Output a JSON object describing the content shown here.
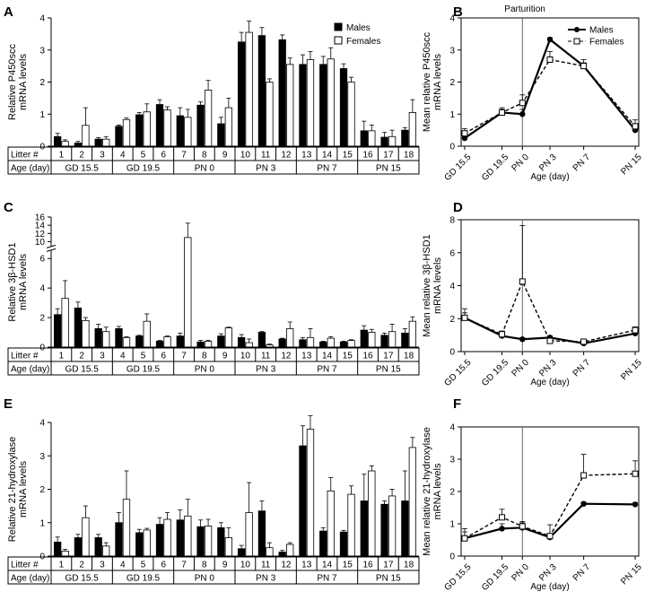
{
  "legend": {
    "males": "Males",
    "females": "Females"
  },
  "table": {
    "litter_header": "Litter #",
    "age_header": "Age (day)",
    "litters": [
      "1",
      "2",
      "3",
      "4",
      "5",
      "6",
      "7",
      "8",
      "9",
      "10",
      "11",
      "12",
      "13",
      "14",
      "15",
      "16",
      "17",
      "18"
    ],
    "age_groups": [
      "GD 15.5",
      "GD 19.5",
      "PN 0",
      "PN 3",
      "PN 7",
      "PN 15"
    ]
  },
  "chart_data": [
    {
      "panel": "A",
      "type": "bar",
      "ylabel": [
        "Relative P450scc",
        "mRNA levels"
      ],
      "yticks": [
        "0",
        "1",
        "2",
        "3",
        "4"
      ],
      "ylim": [
        0,
        4
      ],
      "categories": [
        "1",
        "2",
        "3",
        "4",
        "5",
        "6",
        "7",
        "8",
        "9",
        "10",
        "11",
        "12",
        "13",
        "14",
        "15",
        "16",
        "17",
        "18"
      ],
      "series": [
        {
          "name": "Males",
          "values": [
            0.3,
            0.1,
            0.22,
            0.62,
            0.98,
            1.3,
            0.95,
            1.28,
            0.7,
            3.25,
            3.45,
            3.32,
            2.55,
            2.55,
            2.42,
            0.48,
            0.28,
            0.5
          ],
          "errors": [
            0.1,
            0.05,
            0.05,
            0.04,
            0.07,
            0.15,
            0.25,
            0.1,
            0.2,
            0.3,
            0.25,
            0.15,
            0.3,
            0.25,
            0.15,
            0.3,
            0.15,
            0.08
          ]
        },
        {
          "name": "Females",
          "values": [
            0.15,
            0.65,
            0.22,
            0.83,
            1.07,
            1.13,
            0.9,
            1.75,
            1.2,
            3.55,
            2.0,
            2.55,
            2.7,
            2.72,
            2.0,
            0.48,
            0.3,
            1.05
          ],
          "errors": [
            0.05,
            0.55,
            0.08,
            0.05,
            0.25,
            0.1,
            0.25,
            0.3,
            0.3,
            0.35,
            0.1,
            0.2,
            0.25,
            0.35,
            0.15,
            0.18,
            0.2,
            0.4
          ]
        }
      ]
    },
    {
      "panel": "B",
      "type": "line",
      "ylabel": [
        "Mean relative P450scc",
        "mRNA levels"
      ],
      "xlabel": "Age (day)",
      "yticks": [
        "0",
        "1",
        "2",
        "3",
        "4"
      ],
      "ylim": [
        0,
        4
      ],
      "categories": [
        "GD 15.5",
        "GD 19.5",
        "PN 0",
        "PN 3",
        "PN 7",
        "PN 15"
      ],
      "annotation": "Parturition",
      "series": [
        {
          "name": "Males",
          "values": [
            0.25,
            1.05,
            1.0,
            3.33,
            2.5,
            0.5
          ],
          "errors": [
            0.1,
            0.1,
            0.15,
            0.05,
            0.1,
            0.1
          ]
        },
        {
          "name": "Females",
          "values": [
            0.4,
            1.05,
            1.35,
            2.7,
            2.5,
            0.62
          ],
          "errors": [
            0.15,
            0.15,
            0.25,
            0.25,
            0.2,
            0.2
          ]
        }
      ]
    },
    {
      "panel": "C",
      "type": "bar",
      "ylabel": [
        "Relative 3β-HSD1",
        "mRNA levels"
      ],
      "yticks": [
        "0",
        "2",
        "4",
        "6",
        "10",
        "12",
        "14",
        "16"
      ],
      "ylim": [
        0,
        16
      ],
      "axis_break": [
        6.5,
        9
      ],
      "categories": [
        "1",
        "2",
        "3",
        "4",
        "5",
        "6",
        "7",
        "8",
        "9",
        "10",
        "11",
        "12",
        "13",
        "14",
        "15",
        "16",
        "17",
        "18"
      ],
      "series": [
        {
          "name": "Males",
          "values": [
            2.2,
            2.65,
            1.25,
            1.25,
            0.75,
            0.4,
            0.75,
            0.35,
            0.75,
            0.65,
            1.0,
            0.55,
            0.5,
            0.35,
            0.35,
            1.15,
            0.8,
            0.95
          ],
          "errors": [
            0.4,
            0.4,
            0.3,
            0.15,
            0.05,
            0.05,
            0.2,
            0.1,
            0.15,
            0.2,
            0.05,
            0.05,
            0.15,
            0.05,
            0.05,
            0.3,
            0.15,
            0.3
          ]
        },
        {
          "name": "Females",
          "values": [
            3.3,
            1.8,
            1.05,
            0.65,
            1.75,
            0.7,
            11.0,
            0.4,
            1.3,
            0.3,
            0.15,
            1.25,
            0.65,
            0.6,
            0.45,
            1.0,
            1.05,
            1.75
          ],
          "errors": [
            1.2,
            0.2,
            0.3,
            0.05,
            0.5,
            0.05,
            3.5,
            0.05,
            0.05,
            0.25,
            0.05,
            0.45,
            0.6,
            0.1,
            0.05,
            0.2,
            0.5,
            0.3
          ]
        }
      ]
    },
    {
      "panel": "D",
      "type": "line",
      "ylabel": [
        "Mean relative 3β-HSD1",
        "mRNA levels"
      ],
      "xlabel": "Age (day)",
      "yticks": [
        "0",
        "2",
        "4",
        "6",
        "8"
      ],
      "ylim": [
        0,
        8
      ],
      "categories": [
        "GD 15.5",
        "GD 19.5",
        "PN 0",
        "PN 3",
        "PN 7",
        "PN 15"
      ],
      "series": [
        {
          "name": "Males",
          "values": [
            2.05,
            0.95,
            0.75,
            0.85,
            0.5,
            1.1
          ],
          "errors": [
            0.3,
            0.2,
            0.1,
            0.1,
            0.1,
            0.1
          ]
        },
        {
          "name": "Females",
          "values": [
            2.05,
            1.05,
            4.25,
            0.65,
            0.6,
            1.3
          ],
          "errors": [
            0.55,
            0.2,
            3.4,
            0.2,
            0.1,
            0.2
          ]
        }
      ]
    },
    {
      "panel": "E",
      "type": "bar",
      "ylabel": [
        "Relative 21-hydroxylase",
        "mRNA levels"
      ],
      "yticks": [
        "0",
        "1",
        "2",
        "3",
        "4"
      ],
      "ylim": [
        0,
        4
      ],
      "categories": [
        "1",
        "2",
        "3",
        "4",
        "5",
        "6",
        "7",
        "8",
        "9",
        "10",
        "11",
        "12",
        "13",
        "14",
        "15",
        "16",
        "17",
        "18"
      ],
      "series": [
        {
          "name": "Males",
          "values": [
            0.42,
            0.55,
            0.55,
            1.0,
            0.7,
            0.95,
            1.08,
            0.88,
            0.85,
            0.22,
            1.35,
            0.12,
            3.3,
            0.75,
            0.72,
            1.65,
            1.55,
            1.65
          ],
          "errors": [
            0.15,
            0.1,
            0.1,
            0.3,
            0.1,
            0.2,
            0.3,
            0.2,
            0.15,
            0.1,
            0.3,
            0.05,
            0.6,
            0.1,
            0.05,
            0.8,
            0.1,
            0.9
          ]
        },
        {
          "name": "Females",
          "values": [
            0.15,
            1.15,
            0.3,
            1.7,
            0.78,
            1.1,
            1.2,
            0.9,
            0.55,
            1.3,
            0.25,
            0.35,
            3.8,
            1.95,
            1.85,
            2.55,
            1.8,
            3.25
          ],
          "errors": [
            0.05,
            0.35,
            0.1,
            0.85,
            0.05,
            0.2,
            0.5,
            0.2,
            0.3,
            0.9,
            0.15,
            0.05,
            0.4,
            0.4,
            0.25,
            0.15,
            0.2,
            0.3
          ]
        }
      ]
    },
    {
      "panel": "F",
      "type": "line",
      "ylabel": [
        "Mean relative 21-hydroxylase",
        "mRNA levels"
      ],
      "xlabel": "Age (day)",
      "yticks": [
        "0",
        "1",
        "2",
        "3",
        "4"
      ],
      "ylim": [
        0,
        4
      ],
      "categories": [
        "GD 15.5",
        "GD 19.5",
        "PN 0",
        "PN 3",
        "PN 7",
        "PN 15"
      ],
      "series": [
        {
          "name": "Males",
          "values": [
            0.55,
            0.85,
            0.88,
            0.58,
            1.62,
            1.6
          ],
          "errors": [
            0.3,
            0.15,
            0.15,
            0.1,
            0.05,
            0.05
          ]
        },
        {
          "name": "Females",
          "values": [
            0.55,
            1.2,
            0.92,
            0.62,
            2.5,
            2.55
          ],
          "errors": [
            0.2,
            0.25,
            0.15,
            0.35,
            0.65,
            0.4
          ]
        }
      ]
    }
  ]
}
